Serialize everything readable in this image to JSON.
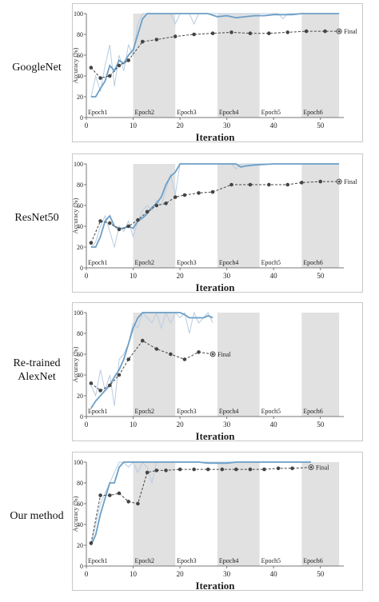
{
  "chart_data": [
    {
      "type": "line",
      "model": "GoogleNet",
      "xlabel": "Iteration",
      "ylabel": "Accuracy (%)",
      "xlim": [
        0,
        55
      ],
      "ylim": [
        0,
        100
      ],
      "xticks": [
        "0",
        "10",
        "20",
        "30",
        "40",
        "50"
      ],
      "yticks": [
        "0",
        "20",
        "40",
        "60",
        "80",
        "100"
      ],
      "epochs": [
        {
          "label": "Epoch1",
          "start": 0,
          "end": 10,
          "shaded": false
        },
        {
          "label": "Epoch2",
          "start": 10,
          "end": 19,
          "shaded": true
        },
        {
          "label": "Epoch3",
          "start": 19,
          "end": 28,
          "shaded": false
        },
        {
          "label": "Epoch4",
          "start": 28,
          "end": 37,
          "shaded": true
        },
        {
          "label": "Epoch5",
          "start": 37,
          "end": 46,
          "shaded": false
        },
        {
          "label": "Epoch6",
          "start": 46,
          "end": 54,
          "shaded": true
        }
      ],
      "final_label": "Final",
      "series": [
        {
          "style": "train-raw",
          "x": [
            1,
            2,
            3,
            4,
            5,
            6,
            7,
            8,
            9,
            10,
            11,
            12,
            13,
            14,
            15,
            16,
            17,
            18,
            19,
            20,
            21,
            22,
            23,
            24,
            25,
            26,
            27,
            28,
            29,
            30,
            31,
            32,
            33,
            34,
            35,
            36,
            37,
            38,
            39,
            40,
            41,
            42,
            43,
            44,
            45,
            46,
            47,
            48,
            49,
            50,
            51,
            52,
            53,
            54
          ],
          "y": [
            20,
            40,
            25,
            50,
            70,
            30,
            60,
            45,
            70,
            60,
            90,
            100,
            100,
            100,
            100,
            100,
            100,
            100,
            90,
            100,
            100,
            100,
            90,
            100,
            100,
            100,
            100,
            100,
            100,
            100,
            100,
            100,
            100,
            100,
            100,
            100,
            100,
            100,
            100,
            100,
            100,
            95,
            100,
            100,
            100,
            100,
            100,
            100,
            100,
            100,
            100,
            100,
            100,
            100
          ]
        },
        {
          "style": "train-smooth",
          "x": [
            1,
            2,
            3,
            4,
            5,
            6,
            7,
            8,
            9,
            10,
            11,
            12,
            13,
            14,
            15,
            16,
            17,
            18,
            19,
            20,
            22,
            24,
            26,
            28,
            30,
            32,
            34,
            36,
            38,
            40,
            42,
            44,
            46,
            48,
            50,
            52,
            54
          ],
          "y": [
            20,
            20,
            28,
            35,
            50,
            45,
            55,
            52,
            60,
            65,
            80,
            95,
            100,
            100,
            100,
            100,
            100,
            100,
            100,
            100,
            100,
            100,
            100,
            97,
            98,
            96,
            97,
            98,
            98,
            99,
            99,
            99,
            100,
            100,
            100,
            100,
            100
          ]
        },
        {
          "style": "validation",
          "x": [
            1,
            3,
            5,
            7,
            9,
            12,
            15,
            19,
            23,
            27,
            31,
            35,
            39,
            43,
            47,
            51,
            54
          ],
          "y": [
            48,
            38,
            40,
            50,
            55,
            73,
            75,
            78,
            80,
            81,
            82,
            81,
            81,
            82,
            83,
            83,
            83
          ]
        }
      ]
    },
    {
      "type": "line",
      "model": "ResNet50",
      "xlabel": "Iteration",
      "ylabel": "Accuracy (%)",
      "xlim": [
        0,
        55
      ],
      "ylim": [
        0,
        100
      ],
      "xticks": [
        "0",
        "10",
        "20",
        "30",
        "40",
        "50"
      ],
      "yticks": [
        "0",
        "20",
        "40",
        "60",
        "80",
        "100"
      ],
      "epochs": [
        {
          "label": "Epoch1",
          "start": 0,
          "end": 10,
          "shaded": false
        },
        {
          "label": "Epoch2",
          "start": 10,
          "end": 19,
          "shaded": true
        },
        {
          "label": "Epoch3",
          "start": 19,
          "end": 28,
          "shaded": false
        },
        {
          "label": "Epoch4",
          "start": 28,
          "end": 37,
          "shaded": true
        },
        {
          "label": "Epoch5",
          "start": 37,
          "end": 46,
          "shaded": false
        },
        {
          "label": "Epoch6",
          "start": 46,
          "end": 54,
          "shaded": true
        }
      ],
      "final_label": "Final",
      "series": [
        {
          "style": "train-raw",
          "x": [
            1,
            2,
            3,
            4,
            5,
            6,
            7,
            8,
            9,
            10,
            11,
            12,
            13,
            14,
            15,
            16,
            17,
            18,
            19,
            20,
            21,
            22,
            23,
            24,
            25,
            26,
            27,
            28,
            29,
            30,
            31,
            32,
            33,
            34,
            35,
            36,
            38,
            40,
            42,
            44,
            46,
            48,
            50,
            52,
            54
          ],
          "y": [
            20,
            25,
            40,
            50,
            35,
            20,
            40,
            35,
            45,
            30,
            45,
            55,
            60,
            55,
            65,
            60,
            75,
            90,
            70,
            100,
            100,
            100,
            100,
            100,
            100,
            100,
            100,
            100,
            100,
            100,
            100,
            95,
            100,
            100,
            100,
            100,
            100,
            100,
            100,
            100,
            100,
            100,
            100,
            100,
            100
          ]
        },
        {
          "style": "train-smooth",
          "x": [
            1,
            2,
            3,
            4,
            5,
            6,
            7,
            8,
            9,
            10,
            11,
            12,
            13,
            14,
            15,
            16,
            17,
            18,
            19,
            20,
            22,
            24,
            26,
            28,
            30,
            32,
            33,
            34,
            36,
            40,
            44,
            48,
            52,
            54
          ],
          "y": [
            20,
            20,
            30,
            45,
            50,
            40,
            38,
            38,
            40,
            38,
            45,
            48,
            52,
            58,
            62,
            68,
            80,
            88,
            92,
            100,
            100,
            100,
            100,
            100,
            100,
            100,
            97,
            98,
            99,
            100,
            100,
            100,
            100,
            100
          ]
        },
        {
          "style": "validation",
          "x": [
            1,
            3,
            5,
            7,
            9,
            11,
            13,
            15,
            17,
            19,
            21,
            24,
            27,
            31,
            35,
            39,
            43,
            46,
            50,
            54
          ],
          "y": [
            24,
            45,
            43,
            37,
            40,
            46,
            54,
            60,
            62,
            68,
            70,
            72,
            73,
            80,
            80,
            80,
            80,
            82,
            83,
            83
          ]
        }
      ]
    },
    {
      "type": "line",
      "model": "Re-trained\nAlexNet",
      "xlabel": "Iteration",
      "ylabel": "Accuracy (%)",
      "xlim": [
        0,
        55
      ],
      "ylim": [
        0,
        100
      ],
      "xticks": [
        "0",
        "10",
        "20",
        "30",
        "40",
        "50"
      ],
      "yticks": [
        "0",
        "20",
        "40",
        "60",
        "80",
        "100"
      ],
      "epochs": [
        {
          "label": "Epoch1",
          "start": 0,
          "end": 10,
          "shaded": false
        },
        {
          "label": "Epoch2",
          "start": 10,
          "end": 19,
          "shaded": true
        },
        {
          "label": "Epoch3",
          "start": 19,
          "end": 28,
          "shaded": false
        },
        {
          "label": "Epoch4",
          "start": 28,
          "end": 37,
          "shaded": true
        },
        {
          "label": "Epoch5",
          "start": 37,
          "end": 46,
          "shaded": false
        },
        {
          "label": "Epoch6",
          "start": 46,
          "end": 54,
          "shaded": true
        }
      ],
      "final_label": "Final",
      "series": [
        {
          "style": "train-raw",
          "x": [
            1,
            2,
            3,
            4,
            5,
            6,
            7,
            8,
            9,
            10,
            11,
            12,
            13,
            14,
            15,
            16,
            17,
            18,
            19,
            20,
            21,
            22,
            23,
            24,
            25,
            26,
            27
          ],
          "y": [
            30,
            20,
            45,
            25,
            40,
            10,
            55,
            60,
            70,
            90,
            85,
            100,
            95,
            90,
            100,
            85,
            100,
            90,
            100,
            95,
            100,
            80,
            100,
            90,
            95,
            100,
            90
          ]
        },
        {
          "style": "train-smooth",
          "x": [
            1,
            2,
            3,
            4,
            5,
            6,
            7,
            8,
            9,
            10,
            11,
            12,
            13,
            14,
            15,
            16,
            17,
            18,
            19,
            20,
            21,
            22,
            23,
            24,
            25,
            26,
            27
          ],
          "y": [
            8,
            15,
            20,
            25,
            30,
            38,
            45,
            55,
            70,
            85,
            95,
            100,
            100,
            100,
            100,
            100,
            100,
            100,
            100,
            100,
            98,
            95,
            95,
            95,
            95,
            97,
            95
          ]
        },
        {
          "style": "validation",
          "x": [
            1,
            3,
            5,
            7,
            9,
            12,
            15,
            18,
            21,
            24,
            27
          ],
          "y": [
            32,
            25,
            30,
            40,
            55,
            73,
            65,
            60,
            55,
            62,
            60
          ]
        }
      ]
    },
    {
      "type": "line",
      "model": "Our method",
      "xlabel": "Iteration",
      "ylabel": "Accuracy (%)",
      "xlim": [
        0,
        55
      ],
      "ylim": [
        0,
        100
      ],
      "xticks": [
        "0",
        "10",
        "20",
        "30",
        "40",
        "50"
      ],
      "yticks": [
        "0",
        "20",
        "40",
        "60",
        "80",
        "100"
      ],
      "epochs": [
        {
          "label": "Epoch1",
          "start": 0,
          "end": 10,
          "shaded": false
        },
        {
          "label": "Epoch2",
          "start": 10,
          "end": 19,
          "shaded": true
        },
        {
          "label": "Epoch3",
          "start": 19,
          "end": 28,
          "shaded": false
        },
        {
          "label": "Epoch4",
          "start": 28,
          "end": 37,
          "shaded": true
        },
        {
          "label": "Epoch5",
          "start": 37,
          "end": 46,
          "shaded": false
        },
        {
          "label": "Epoch6",
          "start": 46,
          "end": 54,
          "shaded": true
        }
      ],
      "final_label": "Final",
      "series": [
        {
          "style": "train-raw",
          "x": [
            1,
            2,
            3,
            4,
            5,
            6,
            7,
            8,
            9,
            10,
            11,
            12,
            13,
            14,
            15,
            16,
            17,
            18,
            20,
            22,
            24,
            26,
            28,
            30,
            32,
            34,
            36,
            38,
            40,
            42,
            44,
            46,
            48
          ],
          "y": [
            20,
            40,
            60,
            70,
            80,
            90,
            100,
            100,
            95,
            100,
            90,
            100,
            95,
            80,
            100,
            100,
            100,
            100,
            100,
            100,
            100,
            100,
            100,
            100,
            100,
            100,
            100,
            100,
            100,
            100,
            100,
            100,
            100
          ]
        },
        {
          "style": "train-smooth",
          "x": [
            1,
            2,
            3,
            4,
            5,
            6,
            7,
            8,
            9,
            10,
            12,
            14,
            16,
            18,
            20,
            22,
            24,
            26,
            28,
            30,
            32,
            34,
            36,
            38,
            40,
            42,
            44,
            46,
            48
          ],
          "y": [
            20,
            30,
            50,
            65,
            80,
            80,
            95,
            100,
            100,
            100,
            100,
            100,
            100,
            100,
            100,
            100,
            100,
            99,
            99,
            99,
            100,
            100,
            100,
            100,
            100,
            100,
            100,
            100,
            100
          ]
        },
        {
          "style": "validation",
          "x": [
            1,
            3,
            5,
            7,
            9,
            11,
            13,
            15,
            17,
            20,
            23,
            26,
            29,
            32,
            35,
            38,
            41,
            44,
            48
          ],
          "y": [
            22,
            68,
            68,
            70,
            62,
            60,
            90,
            92,
            92,
            93,
            93,
            93,
            93,
            93,
            93,
            93,
            94,
            94,
            95
          ]
        }
      ]
    }
  ],
  "colors": {
    "train_raw": "#b9cde2",
    "train_smooth": "#6c9fc7",
    "validation": "#444444",
    "shade": "#e1e1e1",
    "axis_text": "#222222"
  }
}
